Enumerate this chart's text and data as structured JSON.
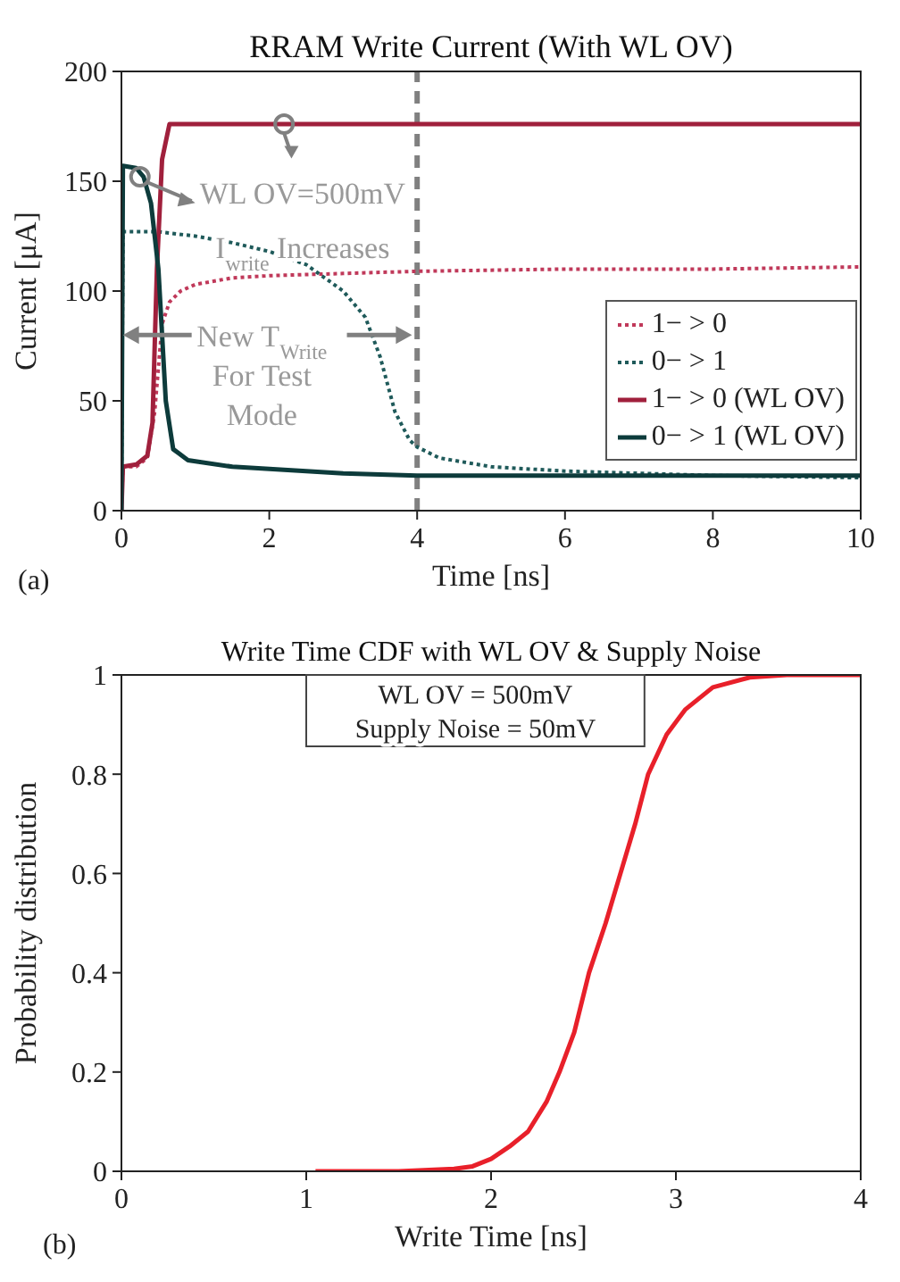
{
  "chart_data": [
    {
      "type": "line",
      "title": "RRAM Write Current (With WL OV)",
      "xlabel": "Time [ns]",
      "ylabel": "Current [μA]",
      "xlim": [
        0,
        10
      ],
      "xticks": [
        0,
        2,
        4,
        6,
        8,
        10
      ],
      "ylim": [
        0,
        200
      ],
      "yticks": [
        0,
        50,
        100,
        150,
        200
      ],
      "grid": false,
      "legend": "right",
      "marker": "none",
      "series": [
        {
          "name": "1− > 0",
          "color": "#c0395a",
          "line_style": "dotted",
          "x": [
            0,
            0.02,
            0.2,
            0.35,
            0.45,
            0.55,
            0.65,
            0.8,
            1,
            1.5,
            2,
            3,
            4,
            6,
            8,
            10
          ],
          "values": [
            0,
            20,
            20,
            24,
            45,
            85,
            95,
            100,
            103,
            106,
            107,
            108,
            109,
            110,
            110,
            111
          ]
        },
        {
          "name": "0− > 1",
          "color": "#1f5a5a",
          "line_style": "dotted",
          "x": [
            0,
            0.02,
            0.5,
            1,
            1.5,
            2,
            2.5,
            3,
            3.3,
            3.5,
            3.7,
            3.9,
            4,
            4.3,
            5,
            6,
            8,
            10
          ],
          "values": [
            0,
            127,
            127,
            125,
            122,
            118,
            112,
            100,
            88,
            70,
            45,
            32,
            29,
            24,
            20,
            18,
            16,
            15
          ]
        },
        {
          "name": "1− > 0 (WL OV)",
          "color": "#a0203c",
          "line_style": "solid",
          "x": [
            0,
            0.02,
            0.2,
            0.35,
            0.42,
            0.48,
            0.55,
            0.65,
            10
          ],
          "values": [
            0,
            20,
            21,
            25,
            40,
            110,
            160,
            176,
            176
          ]
        },
        {
          "name": "0− > 1 (WL OV)",
          "color": "#0d3b3b",
          "line_style": "solid",
          "x": [
            0,
            0.02,
            0.2,
            0.3,
            0.4,
            0.5,
            0.6,
            0.7,
            0.9,
            1.5,
            2,
            3,
            4,
            10
          ],
          "values": [
            0,
            157,
            156,
            152,
            140,
            110,
            50,
            28,
            23,
            20,
            19,
            17,
            16,
            16
          ]
        }
      ],
      "ref_lines": [
        {
          "axis": "x",
          "value": 4,
          "color": "#808080",
          "line_style": "dashed"
        }
      ],
      "annotations": [
        "(a)",
        "WL OV=500mV",
        "I$_{write}$ Increases",
        "New T$_{Write}$",
        "For Test",
        "Mode"
      ]
    },
    {
      "type": "line",
      "title": "Write Time CDF with WL OV & Supply Noise",
      "xlabel": "Write Time [ns]",
      "ylabel": "Probability distribution",
      "xlim": [
        0,
        4
      ],
      "xticks": [
        0,
        1,
        2,
        3,
        4
      ],
      "ylim": [
        0,
        1
      ],
      "yticks": [
        0,
        0.2,
        0.4,
        0.6,
        0.8,
        1
      ],
      "grid": false,
      "legend": false,
      "marker": "none",
      "series": [
        {
          "color": "#e8202a",
          "line_style": "solid",
          "x": [
            1.05,
            1.5,
            1.8,
            1.9,
            2,
            2.1,
            2.2,
            2.3,
            2.37,
            2.45,
            2.53,
            2.62,
            2.7,
            2.78,
            2.85,
            2.95,
            3.05,
            3.2,
            3.4,
            3.6,
            4
          ],
          "values": [
            0,
            0,
            0.005,
            0.01,
            0.025,
            0.05,
            0.08,
            0.14,
            0.2,
            0.28,
            0.4,
            0.5,
            0.6,
            0.7,
            0.8,
            0.88,
            0.93,
            0.975,
            0.995,
            1,
            1
          ]
        }
      ],
      "annotations": [
        "(b)",
        "WL OV = 500mV",
        "Supply Noise = 50mV"
      ]
    }
  ]
}
